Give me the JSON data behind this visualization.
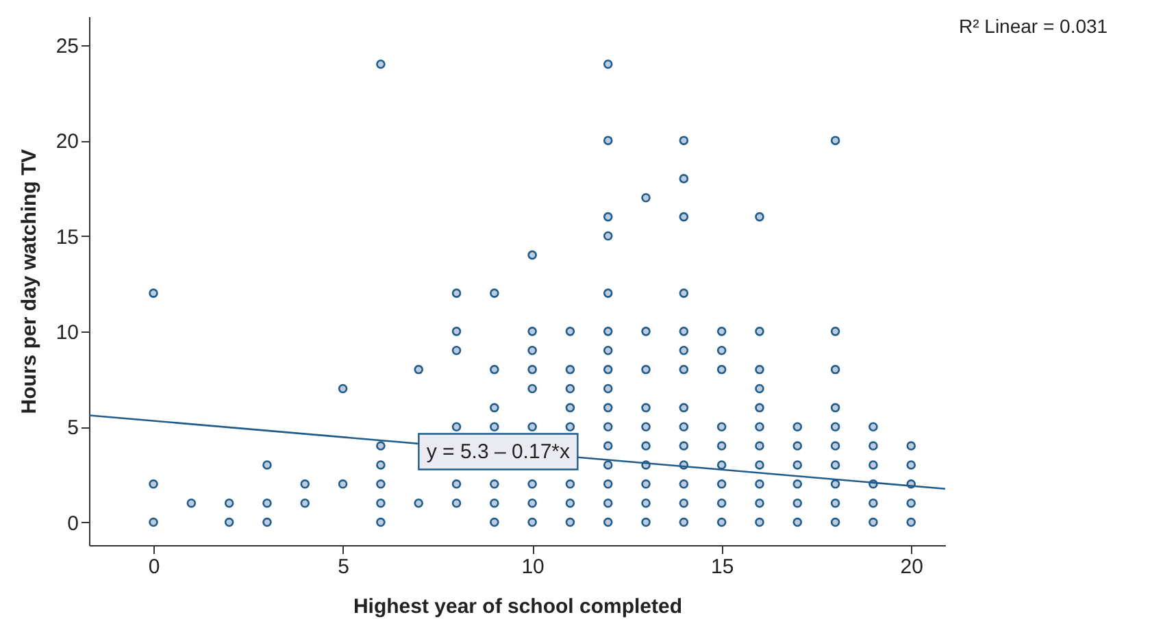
{
  "chart_data": {
    "type": "scatter",
    "xlabel": "Highest year of school completed",
    "ylabel": "Hours per day watching TV",
    "xlim": [
      -1.7,
      20.9
    ],
    "ylim": [
      -1.2,
      26.5
    ],
    "xticks": [
      0,
      5,
      10,
      15,
      20
    ],
    "yticks": [
      0,
      5,
      10,
      15,
      20,
      25
    ],
    "grid": false,
    "marker": "circle",
    "series": [
      {
        "color": "#1f5c8c",
        "x": [
          0,
          0,
          0,
          1,
          2,
          2,
          3,
          3,
          3,
          4,
          4,
          5,
          5,
          6,
          6,
          6,
          6,
          6,
          6,
          7,
          7,
          8,
          8,
          8,
          8,
          8,
          8,
          9,
          9,
          9,
          9,
          9,
          9,
          9,
          10,
          10,
          10,
          10,
          10,
          10,
          10,
          10,
          10,
          11,
          11,
          11,
          11,
          11,
          11,
          11,
          11,
          12,
          12,
          12,
          12,
          12,
          12,
          12,
          12,
          12,
          12,
          12,
          12,
          12,
          12,
          12,
          12,
          13,
          13,
          13,
          13,
          13,
          13,
          13,
          13,
          13,
          13,
          14,
          14,
          14,
          14,
          14,
          14,
          14,
          14,
          14,
          14,
          14,
          14,
          14,
          14,
          15,
          15,
          15,
          15,
          15,
          15,
          15,
          15,
          15,
          16,
          16,
          16,
          16,
          16,
          16,
          16,
          16,
          16,
          16,
          16,
          17,
          17,
          17,
          17,
          17,
          17,
          18,
          18,
          18,
          18,
          18,
          18,
          18,
          18,
          18,
          18,
          19,
          19,
          19,
          19,
          19,
          19,
          20,
          20,
          20,
          20,
          20
        ],
        "values": [
          0,
          2,
          12,
          1,
          0,
          1,
          0,
          1,
          3,
          1,
          2,
          2,
          7,
          0,
          1,
          2,
          3,
          4,
          24,
          1,
          8,
          1,
          2,
          5,
          9,
          10,
          12,
          0,
          1,
          2,
          5,
          6,
          8,
          12,
          0,
          1,
          2,
          5,
          7,
          8,
          9,
          10,
          14,
          0,
          1,
          2,
          5,
          6,
          7,
          8,
          10,
          0,
          1,
          2,
          3,
          4,
          5,
          6,
          7,
          8,
          9,
          10,
          12,
          15,
          16,
          20,
          24,
          0,
          1,
          2,
          3,
          4,
          5,
          6,
          8,
          10,
          17,
          0,
          1,
          2,
          3,
          4,
          5,
          6,
          8,
          9,
          10,
          12,
          16,
          18,
          20,
          0,
          1,
          2,
          3,
          4,
          5,
          8,
          9,
          10,
          0,
          1,
          2,
          3,
          4,
          5,
          6,
          7,
          8,
          10,
          16,
          0,
          1,
          2,
          3,
          4,
          5,
          0,
          1,
          2,
          3,
          4,
          5,
          6,
          8,
          10,
          20,
          0,
          1,
          2,
          3,
          4,
          5,
          0,
          1,
          2,
          3,
          4
        ]
      },
      {
        "type": "line",
        "marker": "none",
        "color": "#1f5c8c",
        "x": [
          -1.7,
          20.9
        ],
        "values": [
          5.6,
          1.75
        ]
      }
    ],
    "annotations": [
      "R² Linear = 0.031",
      {
        "text": "y = 5.3 – 0.17*x",
        "x": 9.1,
        "y": 3.7
      }
    ]
  }
}
